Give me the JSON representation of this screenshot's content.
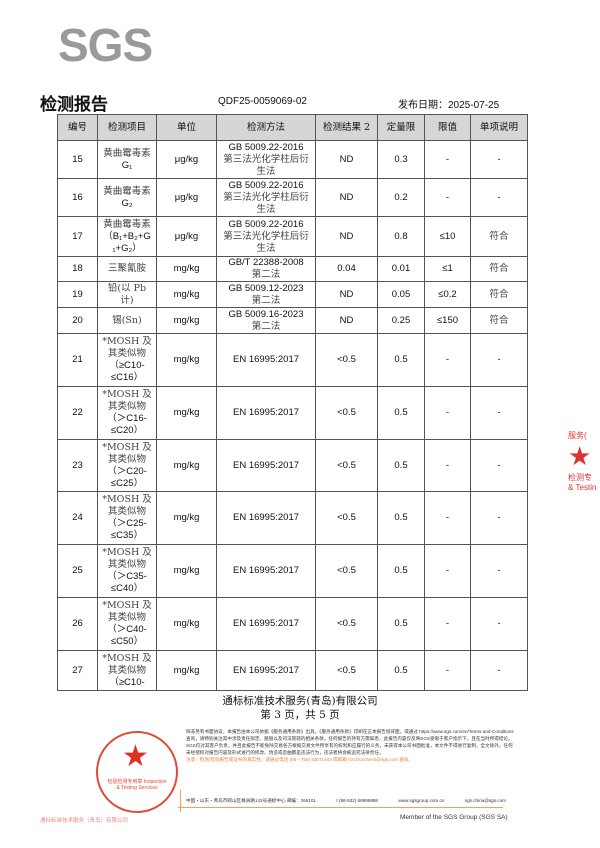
{
  "header": {
    "logo": "SGS",
    "title": "检测报告",
    "report_no": "QDF25-0059069-02",
    "issue_date": "发布日期：2025-07-25"
  },
  "columns": [
    "编号",
    "检测项目",
    "单位",
    "检测方法",
    "检测结果 2",
    "定量限",
    "限值",
    "单项说明"
  ],
  "rows": [
    {
      "no": "15",
      "item": [
        "黄曲霉毒素",
        "G₁"
      ],
      "unit": "μg/kg",
      "method": [
        "GB 5009.22-2016",
        "第三法光化学柱后衍",
        "生法"
      ],
      "result": "ND",
      "loq": "0.3",
      "limit": "-",
      "remark": "-"
    },
    {
      "no": "16",
      "item": [
        "黄曲霉毒素",
        "G₂"
      ],
      "unit": "μg/kg",
      "method": [
        "GB 5009.22-2016",
        "第三法光化学柱后衍",
        "生法"
      ],
      "result": "ND",
      "loq": "0.2",
      "limit": "-",
      "remark": "-"
    },
    {
      "no": "17",
      "item": [
        "黄曲霉毒素",
        "（B₁+B₂+G",
        "₁+G₂）"
      ],
      "unit": "μg/kg",
      "method": [
        "GB 5009.22-2016",
        "第三法光化学柱后衍",
        "生法"
      ],
      "result": "ND",
      "loq": "0.8",
      "limit": "≤10",
      "remark": "符合"
    },
    {
      "no": "18",
      "item": [
        "三聚氰胺"
      ],
      "unit": "mg/kg",
      "method": [
        "GB/T 22388-2008",
        "第二法"
      ],
      "result": "0.04",
      "loq": "0.01",
      "limit": "≤1",
      "remark": "符合"
    },
    {
      "no": "19",
      "item": [
        "铅(以 Pb",
        "计)"
      ],
      "unit": "mg/kg",
      "method": [
        "GB 5009.12-2023",
        "第二法"
      ],
      "result": "ND",
      "loq": "0.05",
      "limit": "≤0.2",
      "remark": "符合"
    },
    {
      "no": "20",
      "item": [
        "锡(Sn)"
      ],
      "unit": "mg/kg",
      "method": [
        "GB 5009.16-2023",
        "第二法"
      ],
      "result": "ND",
      "loq": "0.25",
      "limit": "≤150",
      "remark": "符合"
    },
    {
      "no": "21",
      "item": [
        "*MOSH 及",
        "其类似物",
        "（≥C10-",
        "≤C16）"
      ],
      "unit": "mg/kg",
      "method": [
        "EN 16995:2017"
      ],
      "result": "<0.5",
      "loq": "0.5",
      "limit": "-",
      "remark": "-"
    },
    {
      "no": "22",
      "item": [
        "*MOSH 及",
        "其类似物",
        "（＞C16-",
        "≤C20）"
      ],
      "unit": "mg/kg",
      "method": [
        "EN 16995:2017"
      ],
      "result": "<0.5",
      "loq": "0.5",
      "limit": "-",
      "remark": "-"
    },
    {
      "no": "23",
      "item": [
        "*MOSH 及",
        "其类似物",
        "（＞C20-",
        "≤C25）"
      ],
      "unit": "mg/kg",
      "method": [
        "EN 16995:2017"
      ],
      "result": "<0.5",
      "loq": "0.5",
      "limit": "-",
      "remark": "-"
    },
    {
      "no": "24",
      "item": [
        "*MOSH 及",
        "其类似物",
        "（＞C25-",
        "≤C35）"
      ],
      "unit": "mg/kg",
      "method": [
        "EN 16995:2017"
      ],
      "result": "<0.5",
      "loq": "0.5",
      "limit": "-",
      "remark": "-"
    },
    {
      "no": "25",
      "item": [
        "*MOSH 及",
        "其类似物",
        "（＞C35-",
        "≤C40）"
      ],
      "unit": "mg/kg",
      "method": [
        "EN 16995:2017"
      ],
      "result": "<0.5",
      "loq": "0.5",
      "limit": "-",
      "remark": "-"
    },
    {
      "no": "26",
      "item": [
        "*MOSH 及",
        "其类似物",
        "（＞C40-",
        "≤C50）"
      ],
      "unit": "mg/kg",
      "method": [
        "EN 16995:2017"
      ],
      "result": "<0.5",
      "loq": "0.5",
      "limit": "-",
      "remark": "-"
    },
    {
      "no": "27",
      "item": [
        "*MOSH 及",
        "其类似物",
        "（≥C10-"
      ],
      "unit": "mg/kg",
      "method": [
        "EN 16995:2017"
      ],
      "result": "<0.5",
      "loq": "0.5",
      "limit": "-",
      "remark": "-"
    }
  ],
  "footer": {
    "company": "通标标准技术服务(青岛)有限公司",
    "page": "第 3 页，共 5 页",
    "stamp_text": "检验检测专用章 Inspection & Testing Services",
    "stamp_company": "通标标准技术服务（青岛）有限公司",
    "legal": "除非另有书面协议，本报告由本公司依据《服务通用条款》出具。《服务通用条款》印刷在正本报告纸背面，或通过 https://www.sgs.com/en/Terms-and-Conditions 查询，请特别关注其中涉及责任限定、赔偿以及司法管辖的相关条款。任何报告的持有方需知悉，此报告内容仅反映SGS受限于客户指示下，且在当时所得结论。SGS仅对其客户负责，并且此报告不能免除交易各方根据交易文件所享有的权利和应履行的义务。未获得本公司书面批准，本文件不得进行复制，全文除外。任何未经授权对报告内容及形式进行的修改、伪造或歪曲都是违法行为，违法者将会被追究法律责任。",
    "warning": "注意：检测/检验报告或证书的真实性，请通过电话 (86－755) 83071443 或邮箱 CN.Doccheck@sgs.com 查询。",
    "address": "中国・山东・青岛市崂山区株洲路143号通标中心  邮编：266101",
    "phone": "t (86-532) 68999888",
    "web": "www.sgsgroup.com.cn",
    "email": "sgs.china@sgs.com",
    "member": "Member of the SGS Group (SGS SA)"
  },
  "colors": {
    "stamp": "#e04a3a",
    "accent_line": "#f0a060",
    "header_bg": "#d6d6d6"
  }
}
